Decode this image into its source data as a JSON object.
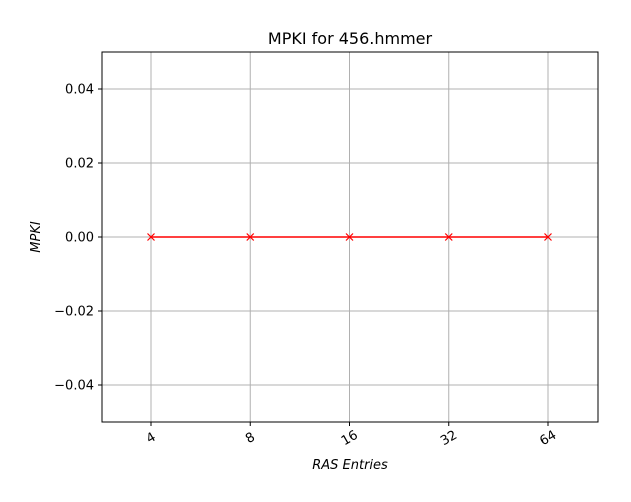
{
  "chart_data": {
    "type": "line",
    "title": "MPKI for 456.hmmer",
    "xlabel": "RAS Entries",
    "ylabel": "MPKI",
    "categories": [
      "4",
      "8",
      "16",
      "32",
      "64"
    ],
    "series": [
      {
        "values": [
          0.0,
          0.0,
          0.0,
          0.0,
          0.0
        ],
        "color": "#ff0000",
        "marker": "x"
      }
    ],
    "ylim": [
      -0.05,
      0.05
    ],
    "yticks": [
      -0.04,
      -0.02,
      0.0,
      0.02,
      0.04
    ],
    "ytick_labels": [
      "−0.04",
      "−0.02",
      "0.00",
      "0.02",
      "0.04"
    ],
    "grid": true,
    "x_tick_rotation": -30
  }
}
